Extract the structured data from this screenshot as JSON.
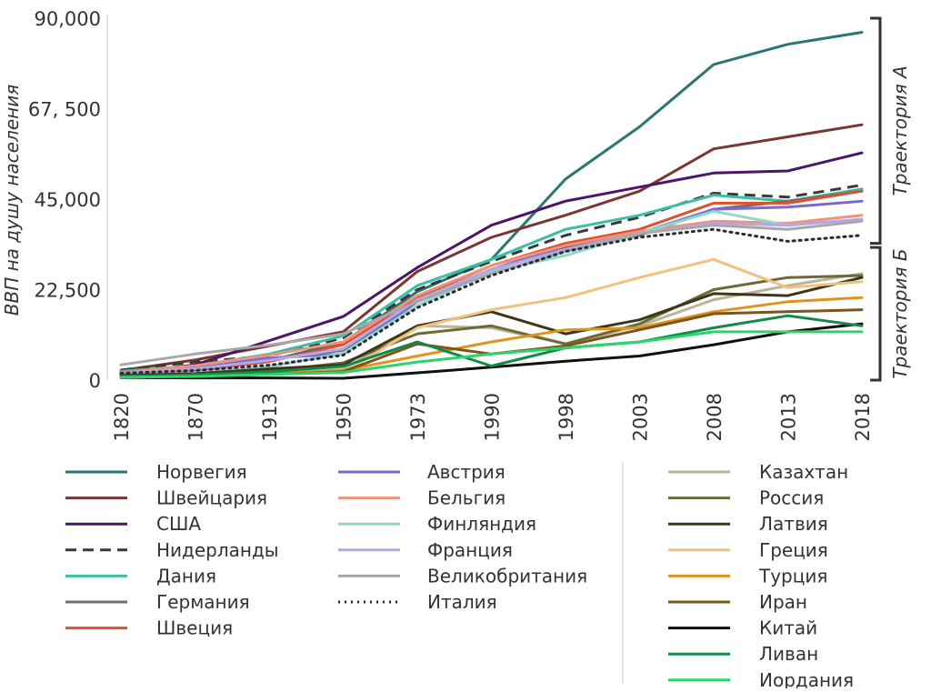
{
  "chart_data": {
    "type": "line",
    "title": "",
    "xlabel": "",
    "ylabel": "ВВП на душу населения",
    "x": [
      "1820",
      "1870",
      "1913",
      "1950",
      "1973",
      "1990",
      "1998",
      "2003",
      "2008",
      "2013",
      "2018"
    ],
    "y_ticks": [
      "0",
      "22,500",
      "45,000",
      "67, 500",
      "90,000"
    ],
    "y_tick_values": [
      0,
      22500,
      45000,
      67500,
      90000
    ],
    "ylim": [
      0,
      90000
    ],
    "grid": false,
    "brackets": [
      {
        "label": "Траектория А",
        "from": 34000,
        "to": 90000
      },
      {
        "label": "Траектория Б",
        "from": 0,
        "to": 33000
      }
    ],
    "series": [
      {
        "name": "Норвегия",
        "color": "#2b7673",
        "style": "solid",
        "group": "A",
        "values": [
          1400,
          2700,
          4800,
          9400,
          22000,
          30000,
          50000,
          63000,
          78500,
          83500,
          86500
        ]
      },
      {
        "name": "Швейцария",
        "color": "#7b3535",
        "style": "solid",
        "group": "A",
        "values": [
          2400,
          5000,
          8500,
          12000,
          27000,
          35500,
          41000,
          47000,
          57500,
          60500,
          63500
        ]
      },
      {
        "name": "США",
        "color": "#4d1468",
        "style": "solid",
        "group": "A",
        "values": [
          1600,
          3800,
          9800,
          15800,
          28000,
          38500,
          44500,
          48000,
          51500,
          52000,
          56500
        ]
      },
      {
        "name": "Нидерланды",
        "color": "#3a3a3a",
        "style": "dashed",
        "group": "A",
        "values": [
          2500,
          4500,
          6000,
          10500,
          22500,
          29500,
          36000,
          40500,
          46500,
          45500,
          48500
        ]
      },
      {
        "name": "Дания",
        "color": "#3bbfa4",
        "style": "solid",
        "group": "A",
        "values": [
          2200,
          3500,
          6500,
          11000,
          23500,
          30000,
          37500,
          41000,
          46000,
          44500,
          47500
        ]
      },
      {
        "name": "Германия",
        "color": "#707070",
        "style": "solid",
        "group": "A",
        "values": [
          1600,
          2800,
          5300,
          7400,
          20000,
          27500,
          33000,
          36000,
          42500,
          44500,
          47000
        ]
      },
      {
        "name": "Швеция",
        "color": "#e0502a",
        "style": "solid",
        "group": "A",
        "values": [
          1400,
          2400,
          4600,
          8800,
          20500,
          28500,
          34000,
          37500,
          44000,
          44000,
          47000
        ]
      },
      {
        "name": "Австрия",
        "color": "#7a6ad0",
        "style": "solid",
        "group": "A",
        "values": [
          1900,
          3200,
          5500,
          6500,
          19500,
          27500,
          33500,
          36500,
          42500,
          43000,
          44500
        ]
      },
      {
        "name": "Бельгия",
        "color": "#f0927a",
        "style": "solid",
        "group": "A",
        "values": [
          1800,
          3600,
          6200,
          9500,
          21000,
          28500,
          33500,
          37000,
          39500,
          39000,
          41000
        ]
      },
      {
        "name": "Финляндия",
        "color": "#8ed8c8",
        "style": "solid",
        "group": "A",
        "values": [
          1100,
          1900,
          3300,
          6700,
          18500,
          27000,
          31000,
          36500,
          42000,
          38500,
          40000
        ]
      },
      {
        "name": "Франция",
        "color": "#b2a8e8",
        "style": "solid",
        "group": "A",
        "values": [
          1600,
          2800,
          4900,
          7800,
          20000,
          27500,
          32500,
          36500,
          39000,
          38500,
          40000
        ]
      },
      {
        "name": "Великобритания",
        "color": "#a8a8a8",
        "style": "solid",
        "group": "A",
        "values": [
          3800,
          6500,
          8700,
          11500,
          19500,
          26500,
          32000,
          36500,
          38500,
          37500,
          39500
        ]
      },
      {
        "name": "Италия",
        "color": "#2a2a3a",
        "style": "dotted",
        "group": "A",
        "values": [
          1700,
          2400,
          3700,
          6200,
          18000,
          26000,
          32000,
          35500,
          37500,
          34500,
          36000
        ]
      },
      {
        "name": "Казахтан",
        "color": "#bcb49a",
        "style": "solid",
        "group": "B",
        "values": [
          700,
          900,
          1500,
          2600,
          13500,
          13000,
          9000,
          13500,
          20000,
          23500,
          26500
        ]
      },
      {
        "name": "Россия",
        "color": "#6e6a38",
        "style": "solid",
        "group": "B",
        "values": [
          1000,
          1400,
          2200,
          4300,
          11500,
          13500,
          9000,
          14000,
          22500,
          25500,
          26000
        ]
      },
      {
        "name": "Латвия",
        "color": "#3c3618",
        "style": "solid",
        "group": "B",
        "values": [
          1200,
          1600,
          2800,
          3800,
          13500,
          17000,
          11500,
          15000,
          21500,
          21000,
          25500
        ]
      },
      {
        "name": "Греция",
        "color": "#f0c27e",
        "style": "solid",
        "group": "B",
        "values": [
          800,
          1300,
          1900,
          1800,
          13000,
          17500,
          20500,
          25500,
          30000,
          23000,
          24500
        ]
      },
      {
        "name": "Турция",
        "color": "#e3921e",
        "style": "solid",
        "group": "B",
        "values": [
          800,
          1000,
          1600,
          2400,
          6000,
          9500,
          12500,
          13000,
          17000,
          19500,
          20500
        ]
      },
      {
        "name": "Иран",
        "color": "#7a561a",
        "style": "solid",
        "group": "B",
        "values": [
          700,
          900,
          1400,
          2100,
          9000,
          6500,
          8500,
          12500,
          16500,
          17000,
          17500
        ]
      },
      {
        "name": "Китай",
        "color": "#101010",
        "style": "solid",
        "group": "B",
        "values": [
          600,
          550,
          550,
          450,
          1800,
          3200,
          4700,
          6000,
          8800,
          12000,
          14000
        ]
      },
      {
        "name": "Ливан",
        "color": "#13884a",
        "style": "solid",
        "group": "B",
        "values": [
          900,
          1300,
          2100,
          3400,
          9500,
          3500,
          8000,
          9500,
          13000,
          16000,
          13500
        ]
      },
      {
        "name": "Иордания",
        "color": "#2dd46a",
        "style": "solid",
        "group": "B",
        "values": [
          700,
          900,
          1400,
          1900,
          4500,
          6500,
          8000,
          9500,
          12000,
          12000,
          12000
        ]
      }
    ]
  }
}
